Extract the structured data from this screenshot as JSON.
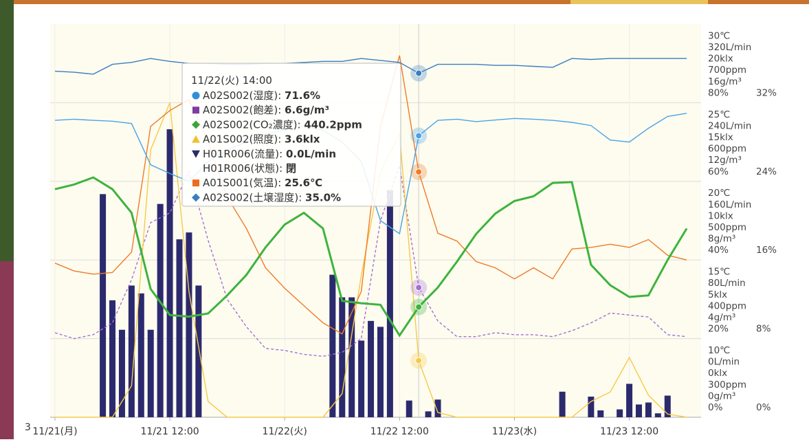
{
  "chart_data": {
    "type": "multi-axis",
    "xlim": [
      -0.5,
      67.5
    ],
    "xticks": [
      {
        "value": 0,
        "label": "11/21(月)"
      },
      {
        "value": 12,
        "label": "11/21 12:00"
      },
      {
        "value": 24,
        "label": "11/22(火)"
      },
      {
        "value": 36,
        "label": "11/22 12:00"
      },
      {
        "value": 48,
        "label": "11/23(水)"
      },
      {
        "value": 60,
        "label": "11/23 12:00"
      }
    ],
    "grid": true,
    "y_axes": {
      "temp": {
        "ylim": [
          10,
          35
        ],
        "yticks": [
          {
            "value": 10,
            "label": "10℃"
          },
          {
            "value": 15,
            "label": "15℃"
          },
          {
            "value": 20,
            "label": "20℃"
          },
          {
            "value": 25,
            "label": "25℃"
          },
          {
            "value": 30,
            "label": "30℃"
          }
        ]
      },
      "flow": {
        "ylim": [
          0,
          400
        ],
        "yticks": [
          {
            "value": 0,
            "label": "0L/min"
          },
          {
            "value": 80,
            "label": "80L/min"
          },
          {
            "value": 160,
            "label": "160L/min"
          },
          {
            "value": 240,
            "label": "240L/min"
          },
          {
            "value": 320,
            "label": "320L/min"
          }
        ]
      },
      "light": {
        "ylim": [
          0,
          25
        ],
        "yticks": [
          {
            "value": 0,
            "label": "0klx"
          },
          {
            "value": 5,
            "label": "5klx"
          },
          {
            "value": 10,
            "label": "10klx"
          },
          {
            "value": 15,
            "label": "15klx"
          },
          {
            "value": 20,
            "label": "20klx"
          }
        ]
      },
      "co2": {
        "ylim": [
          300,
          800
        ],
        "yticks": [
          {
            "value": 300,
            "label": "300ppm"
          },
          {
            "value": 400,
            "label": "400ppm"
          },
          {
            "value": 500,
            "label": "500ppm"
          },
          {
            "value": 600,
            "label": "600ppm"
          },
          {
            "value": 700,
            "label": "700ppm"
          }
        ]
      },
      "sat": {
        "ylim": [
          0,
          20
        ],
        "yticks": [
          {
            "value": 0,
            "label": "0g/m³"
          },
          {
            "value": 4,
            "label": "4g/m³"
          },
          {
            "value": 8,
            "label": "8g/m³"
          },
          {
            "value": 12,
            "label": "12g/m³"
          },
          {
            "value": 16,
            "label": "16g/m³"
          }
        ]
      },
      "hum": {
        "ylim": [
          0,
          100
        ],
        "yticks": [
          {
            "value": 0,
            "label": "0%"
          },
          {
            "value": 20,
            "label": "20%"
          },
          {
            "value": 40,
            "label": "40%"
          },
          {
            "value": 60,
            "label": "60%"
          },
          {
            "value": 80,
            "label": "80%"
          }
        ]
      },
      "soil": {
        "ylim": [
          0,
          40
        ],
        "yticks": [
          {
            "value": 0,
            "label": "0%"
          },
          {
            "value": 8,
            "label": "8%"
          },
          {
            "value": 16,
            "label": "16%"
          },
          {
            "value": 24,
            "label": "24%"
          },
          {
            "value": 32,
            "label": "32%"
          }
        ]
      }
    },
    "x": [
      0,
      2,
      4,
      6,
      8,
      10,
      12,
      14,
      16,
      18,
      20,
      22,
      24,
      26,
      28,
      30,
      32,
      34,
      36,
      38,
      40,
      42,
      44,
      46,
      48,
      50,
      52,
      54,
      56,
      58,
      60,
      62,
      64,
      66
    ],
    "bars": {
      "axis": "flow",
      "color": "#2c2a6e",
      "x": [
        5,
        6,
        7,
        8,
        9,
        10,
        11,
        12,
        13,
        14,
        15,
        29,
        30,
        31,
        32,
        33,
        34,
        35,
        37,
        39,
        40,
        53,
        56,
        57,
        59,
        60,
        61,
        62,
        63,
        64
      ],
      "values": [
        227,
        119,
        89,
        134,
        126,
        89,
        217,
        293,
        181,
        188,
        134,
        145,
        122,
        122,
        78,
        98,
        92,
        231,
        17,
        6,
        18,
        26,
        21,
        7,
        8,
        34,
        13,
        15,
        4,
        22
      ]
    },
    "series": [
      {
        "axis": "sat",
        "color": "#a46fd6",
        "dashed": true,
        "values": [
          4.3,
          4.0,
          4.2,
          4.8,
          7.0,
          9.9,
          10.4,
          12.5,
          9.0,
          6.0,
          4.6,
          3.5,
          3.4,
          3.2,
          3.1,
          3.3,
          4.0,
          10.0,
          12.8,
          6.6,
          4.9,
          4.1,
          4.1,
          4.3,
          4.2,
          4.2,
          4.1,
          4.4,
          4.8,
          5.3,
          5.2,
          5.1,
          4.2,
          4.1
        ]
      },
      {
        "axis": "light",
        "color": "#f7c948",
        "values": [
          0,
          0,
          0,
          0,
          2.0,
          17.0,
          20.0,
          8.0,
          1.0,
          0,
          0,
          0,
          0,
          0,
          0,
          1.5,
          9.0,
          15.6,
          18.0,
          3.6,
          0.3,
          0,
          0,
          0,
          0,
          0,
          0,
          0,
          1.0,
          1.6,
          3.8,
          1.4,
          0.2,
          0
        ]
      },
      {
        "axis": "temp",
        "color": "#f07a28",
        "values": [
          19.8,
          19.3,
          19.1,
          19.2,
          20.5,
          28.5,
          29.5,
          30.2,
          27.5,
          24.0,
          22.0,
          19.5,
          18.2,
          17.1,
          16.0,
          15.3,
          18.0,
          28.5,
          33.0,
          25.6,
          21.7,
          21.2,
          19.9,
          19.5,
          18.8,
          19.5,
          18.8,
          20.7,
          20.8,
          21.0,
          20.8,
          21.3,
          20.3,
          20.0
        ]
      },
      {
        "axis": "co2",
        "color": "#3db33d",
        "width": 3,
        "values": [
          590,
          596,
          605,
          590,
          560,
          463,
          430,
          428,
          432,
          455,
          481,
          516,
          545,
          560,
          540,
          448,
          445,
          443,
          404,
          440.2,
          465,
          498,
          533,
          559,
          575,
          581,
          598,
          599,
          494,
          468,
          453,
          455,
          500,
          540
        ]
      },
      {
        "axis": "hum",
        "color": "#4aa3e8",
        "values": [
          75.5,
          75.8,
          75.5,
          75.3,
          74.7,
          64.2,
          62.0,
          60.0,
          65,
          68,
          70,
          72,
          73,
          74,
          73,
          70,
          65,
          50,
          46.7,
          71.6,
          75.5,
          75.8,
          75.2,
          75.6,
          76.0,
          75.8,
          75.5,
          75.0,
          74.2,
          70.5,
          70.0,
          73.5,
          76.5,
          77.3
        ]
      },
      {
        "axis": "soil",
        "color": "#3a7dc0",
        "values": [
          35.2,
          35.1,
          34.9,
          35.9,
          36.1,
          36.5,
          36.2,
          36.0,
          36.0,
          35.9,
          35.9,
          36.0,
          36.0,
          36.1,
          36.2,
          36.2,
          36.5,
          36.3,
          36.1,
          35.0,
          35.9,
          35.9,
          35.9,
          35.8,
          35.8,
          35.7,
          35.6,
          36.5,
          36.4,
          36.5,
          36.5,
          36.5,
          36.5,
          36.5
        ]
      }
    ],
    "tooltip": {
      "title": "11/22(火) 14:00",
      "index": 19,
      "rows": [
        {
          "label": "A02S002(湿度): ",
          "value": "71.6%"
        },
        {
          "label": "A02S002(飽差): ",
          "value": "6.6g/m³"
        },
        {
          "label": "A02S002(CO₂濃度): ",
          "value": "440.2ppm"
        },
        {
          "label": "A01S002(照度): ",
          "value": "3.6klx"
        },
        {
          "label": "H01R006(流量): ",
          "value": "0.0L/min"
        },
        {
          "label": "H01R006(状態): ",
          "value": "閉"
        },
        {
          "label": "A01S001(気温): ",
          "value": "25.6℃"
        },
        {
          "label": "A02S002(土壌湿度): ",
          "value": "35.0%"
        }
      ]
    }
  },
  "page_number": "3"
}
